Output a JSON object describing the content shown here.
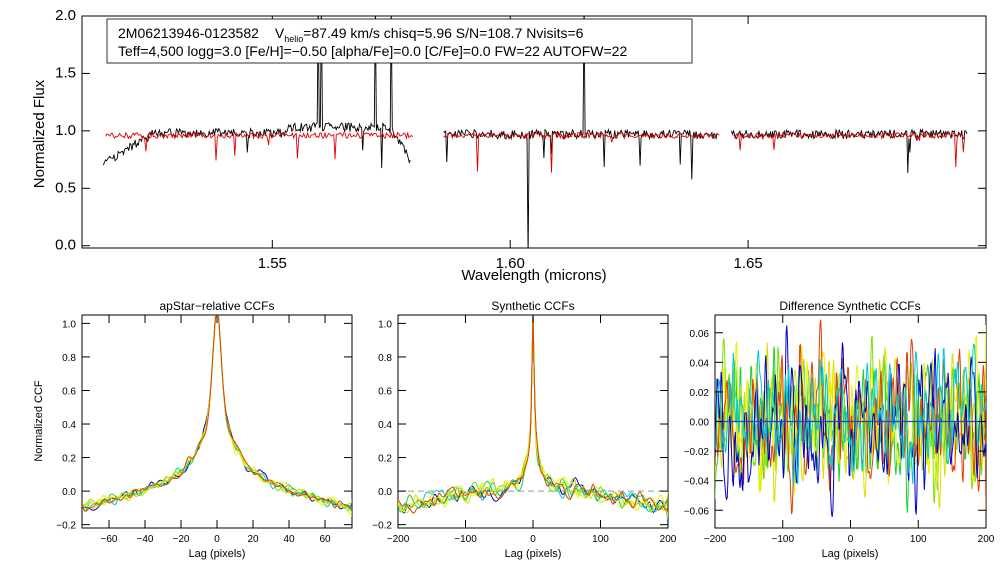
{
  "header": {
    "star_id": "2M06213946-0123582",
    "line1_v_prefix": "V",
    "line1_v_sub": "helio",
    "line1_rest": "=87.49 km/s  chisq=5.96  S/N=108.7  Nvisits=6",
    "line2": "Teff=4,500 logg=3.0 [Fe/H]=−0.50 [alpha/Fe]=0.0 [C/Fe]=0.0 FW=22 AUTOFW=22"
  },
  "colors": {
    "observed": "#000000",
    "model": "#e00000",
    "ccf_palette": [
      "#0000cc",
      "#00c8d8",
      "#7ee000",
      "#20d030",
      "#d8e000",
      "#f0f000",
      "#e04000"
    ],
    "zero_line_dash": "#999999",
    "diff_zero": "#2040d0"
  },
  "chart_data": [
    {
      "id": "spectrum",
      "type": "line",
      "title": "",
      "xlabel": "Wavelength (microns)",
      "ylabel": "Normalized Flux",
      "xlim": [
        1.51,
        1.7
      ],
      "ylim": [
        -0.02,
        2.0
      ],
      "xticks": [
        1.55,
        1.6,
        1.65
      ],
      "xtick_labels": [
        "1.55",
        "1.60",
        "1.65"
      ],
      "yticks": [
        0.0,
        0.5,
        1.0,
        1.5,
        2.0
      ],
      "ytick_labels": [
        "0.0",
        "0.5",
        "1.0",
        "1.5",
        "2.0"
      ],
      "series": [
        {
          "name": "observed",
          "segments": [
            [
              1.5145,
              1.579
            ],
            [
              1.586,
              1.6435
            ],
            [
              1.6465,
              1.696
            ]
          ]
        },
        {
          "name": "model",
          "segments": [
            [
              1.515,
              1.5795
            ],
            [
              1.586,
              1.644
            ],
            [
              1.647,
              1.6955
            ]
          ],
          "level": 0.96
        }
      ]
    },
    {
      "id": "apstar-ccf",
      "type": "line",
      "title": "apStar−relative CCFs",
      "xlabel": "Lag (pixels)",
      "ylabel": "Normalized CCF",
      "xlim": [
        -75,
        75
      ],
      "ylim": [
        -0.22,
        1.05
      ],
      "xticks": [
        -60,
        -40,
        -20,
        0,
        20,
        40,
        60
      ],
      "xtick_labels": [
        "−60",
        "−40",
        "−20",
        "0",
        "20",
        "40",
        "60"
      ],
      "yticks": [
        -0.2,
        0.0,
        0.2,
        0.4,
        0.6,
        0.8,
        1.0
      ],
      "ytick_labels": [
        "−0.2",
        "0.0",
        "0.2",
        "0.4",
        "0.6",
        "0.8",
        "1.0"
      ],
      "peak": 1.0,
      "n_series": 7,
      "edge_values": [
        -0.16,
        -0.18
      ]
    },
    {
      "id": "synthetic-ccf",
      "type": "line",
      "title": "Synthetic CCFs",
      "xlabel": "Lag (pixels)",
      "ylabel": "",
      "xlim": [
        -200,
        200
      ],
      "ylim": [
        -0.22,
        1.05
      ],
      "xticks": [
        -200,
        -100,
        0,
        100,
        200
      ],
      "xtick_labels": [
        "−200",
        "−100",
        "0",
        "100",
        "200"
      ],
      "yticks": [
        -0.2,
        0.0,
        0.2,
        0.4,
        0.6,
        0.8,
        1.0
      ],
      "ytick_labels": [
        "−0.2",
        "0.0",
        "0.2",
        "0.4",
        "0.6",
        "0.8",
        "1.0"
      ],
      "peak": 1.0,
      "n_series": 7,
      "zero_line": 0.0
    },
    {
      "id": "difference-ccf",
      "type": "line",
      "title": "Difference Synthetic CCFs",
      "xlabel": "Lag (pixels)",
      "ylabel": "",
      "xlim": [
        -200,
        200
      ],
      "ylim": [
        -0.072,
        0.072
      ],
      "xticks": [
        -200,
        -100,
        0,
        100,
        200
      ],
      "xtick_labels": [
        "−200",
        "−100",
        "0",
        "100",
        "200"
      ],
      "yticks": [
        -0.06,
        -0.04,
        -0.02,
        0.0,
        0.02,
        0.04,
        0.06
      ],
      "ytick_labels": [
        "−0.06",
        "−0.04",
        "−0.02",
        "0.00",
        "0.02",
        "0.04",
        "0.06"
      ],
      "n_series": 7,
      "amplitude": 0.05,
      "zero_line": 0.0
    }
  ]
}
